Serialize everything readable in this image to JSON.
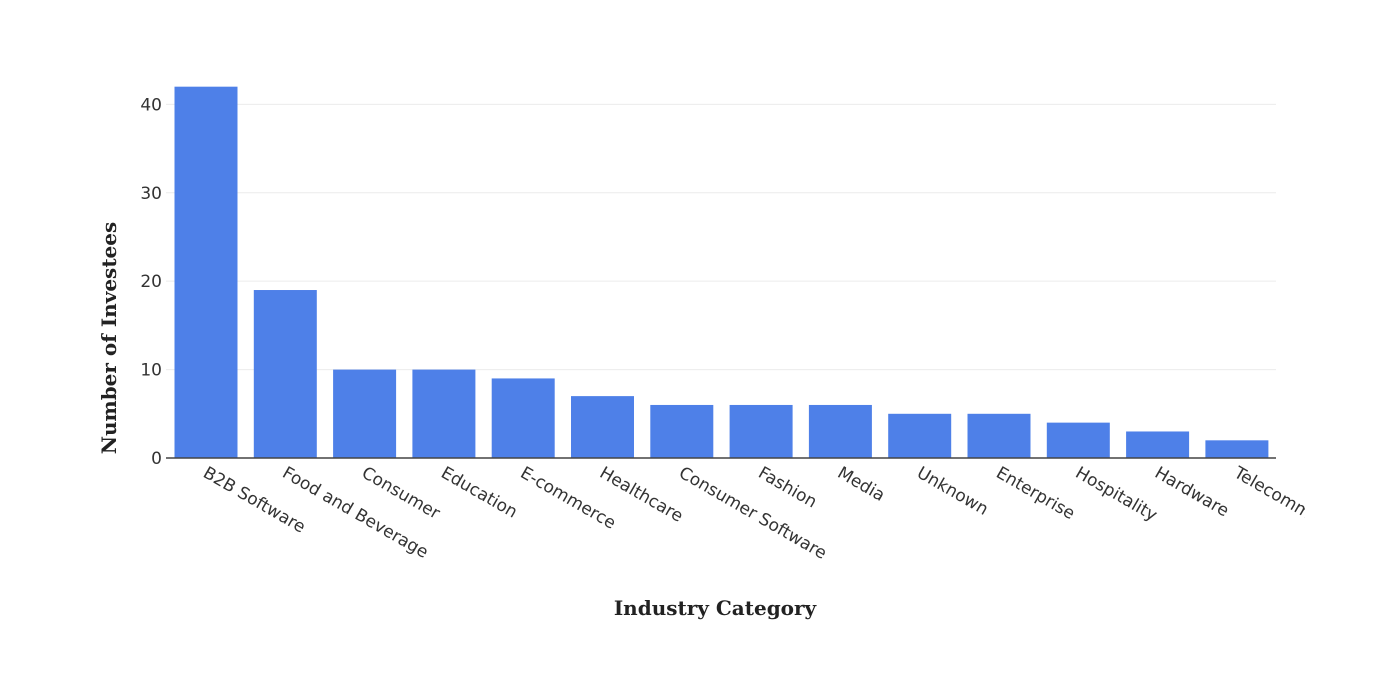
{
  "chart_data": {
    "type": "bar",
    "title": "",
    "xlabel": "Industry Category",
    "ylabel": "Number of Investees",
    "categories": [
      "B2B Software",
      "Food and Beverage",
      "Consumer",
      "Education",
      "E-commerce",
      "Healthcare",
      "Consumer Software",
      "Fashion",
      "Media",
      "Unknown",
      "Enterprise",
      "Hospitality",
      "Hardware",
      "Telecomm"
    ],
    "values": [
      42,
      19,
      10,
      10,
      9,
      7,
      6,
      6,
      6,
      5,
      5,
      4,
      3,
      2
    ],
    "ylim": [
      0,
      44
    ],
    "yticks": [
      0,
      10,
      20,
      30,
      40
    ],
    "grid": true,
    "bar_color": "#4e80e8"
  }
}
